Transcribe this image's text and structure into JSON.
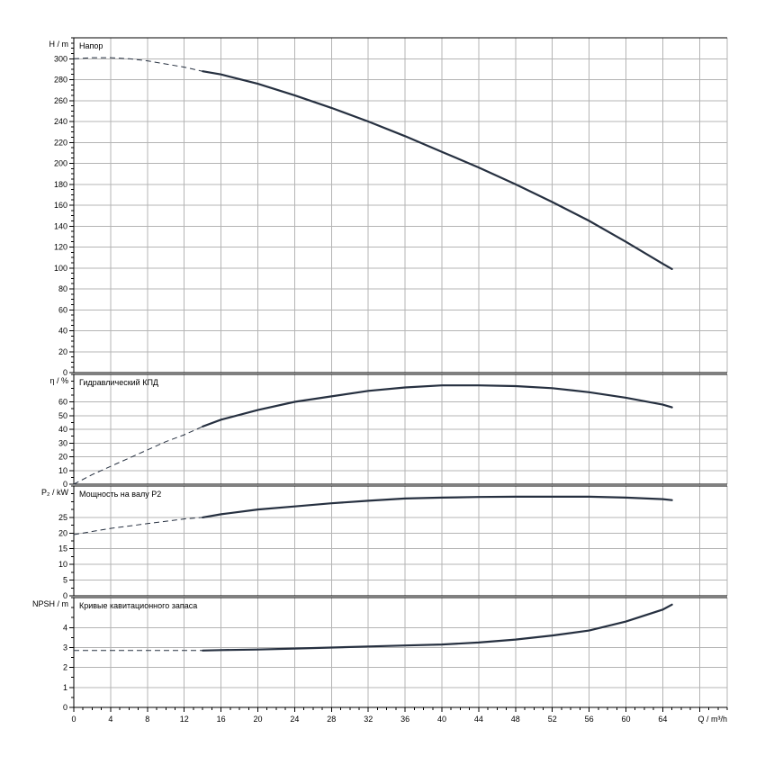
{
  "x_axis": {
    "label": "Q / m³/h",
    "min": 0,
    "max": 71,
    "tick_step": 4,
    "minor_step": 1,
    "ticks": [
      0,
      4,
      8,
      12,
      16,
      20,
      24,
      28,
      32,
      36,
      40,
      44,
      48,
      52,
      56,
      60,
      64
    ],
    "grid_x": [
      0,
      4,
      8,
      12,
      16,
      20,
      24,
      28,
      32,
      36,
      40,
      44,
      48,
      52,
      56,
      60,
      64,
      68
    ]
  },
  "chart_data": [
    {
      "type": "line",
      "title": "Напор",
      "ylabel": "H / m",
      "ylim": [
        0,
        320
      ],
      "y_ticks": [
        0,
        20,
        40,
        60,
        80,
        100,
        120,
        140,
        160,
        180,
        200,
        220,
        240,
        260,
        280,
        300
      ],
      "minor_step": 5,
      "grid": true,
      "series": [
        {
          "style": "dashed",
          "x": [
            0,
            2,
            4,
            6,
            8,
            10,
            12,
            14
          ],
          "y": [
            300,
            301,
            301,
            300,
            298,
            295,
            292,
            288
          ]
        },
        {
          "style": "solid",
          "x": [
            14,
            16,
            20,
            24,
            28,
            32,
            36,
            40,
            44,
            48,
            52,
            56,
            60,
            64,
            65
          ],
          "y": [
            288,
            285,
            276,
            265,
            253,
            240,
            226,
            211,
            196,
            180,
            163,
            145,
            125,
            104,
            99
          ]
        }
      ]
    },
    {
      "type": "line",
      "title": "Гидравлический КПД",
      "ylabel": "η / %",
      "ylim": [
        0,
        80
      ],
      "y_ticks": [
        0,
        10,
        20,
        30,
        40,
        50,
        60
      ],
      "minor_step": 5,
      "grid": true,
      "series": [
        {
          "style": "dashed",
          "x": [
            0,
            2,
            4,
            6,
            8,
            10,
            12,
            14
          ],
          "y": [
            0,
            7,
            13,
            19,
            25,
            31,
            36,
            42
          ]
        },
        {
          "style": "solid",
          "x": [
            14,
            16,
            20,
            24,
            28,
            32,
            36,
            40,
            44,
            48,
            52,
            56,
            60,
            64,
            65
          ],
          "y": [
            42,
            47,
            54,
            60,
            64,
            68,
            70.5,
            72,
            72,
            71.5,
            70,
            67,
            63,
            58,
            56
          ]
        }
      ]
    },
    {
      "type": "line",
      "title": "Мощность на валу P2",
      "ylabel": "P₂ / kW",
      "ylim": [
        0,
        35
      ],
      "y_ticks": [
        0,
        5,
        10,
        15,
        20,
        25
      ],
      "minor_step": 2.5,
      "grid": true,
      "series": [
        {
          "style": "dashed",
          "x": [
            0,
            4,
            8,
            12,
            14
          ],
          "y": [
            19.5,
            21.5,
            23,
            24.5,
            25
          ]
        },
        {
          "style": "solid",
          "x": [
            14,
            16,
            20,
            24,
            28,
            32,
            36,
            40,
            44,
            48,
            52,
            56,
            60,
            64,
            65
          ],
          "y": [
            25,
            26,
            27.5,
            28.5,
            29.5,
            30.3,
            31,
            31.3,
            31.5,
            31.6,
            31.6,
            31.6,
            31.3,
            30.8,
            30.5
          ]
        }
      ]
    },
    {
      "type": "line",
      "title": "Кривые кавитационного запаса",
      "ylabel": "NPSH / m",
      "ylim": [
        0,
        5.5
      ],
      "y_ticks": [
        0,
        1,
        2,
        3,
        4
      ],
      "minor_step": 0.5,
      "grid": true,
      "series": [
        {
          "style": "dashed",
          "x": [
            0,
            4,
            8,
            12,
            14
          ],
          "y": [
            2.85,
            2.85,
            2.85,
            2.85,
            2.85
          ]
        },
        {
          "style": "solid",
          "x": [
            14,
            16,
            20,
            24,
            28,
            32,
            36,
            40,
            44,
            48,
            52,
            56,
            60,
            64,
            65
          ],
          "y": [
            2.85,
            2.87,
            2.9,
            2.95,
            3.0,
            3.05,
            3.1,
            3.15,
            3.25,
            3.4,
            3.6,
            3.85,
            4.3,
            4.9,
            5.15
          ]
        }
      ]
    }
  ]
}
